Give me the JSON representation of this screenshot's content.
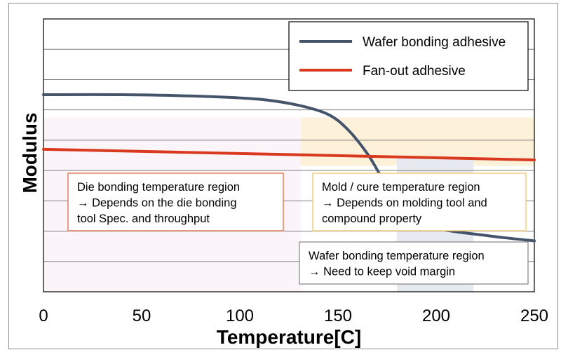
{
  "chart_data": {
    "type": "line",
    "xlabel": "Temperature[C]",
    "ylabel": "Modulus",
    "xlim": [
      0,
      250
    ],
    "ylim": [
      0,
      9
    ],
    "x_ticks": [
      "0",
      "50",
      "100",
      "150",
      "200",
      "250"
    ],
    "grid": true,
    "legend_position": "top-right",
    "series": [
      {
        "name": "Wafer bonding adhesive",
        "color": "#44546a",
        "x": [
          0,
          40,
          80,
          110,
          130,
          145,
          155,
          165,
          172,
          180,
          190,
          200,
          210,
          220,
          235,
          250
        ],
        "y": [
          6.5,
          6.5,
          6.45,
          6.35,
          6.15,
          5.85,
          5.35,
          4.55,
          3.8,
          3.0,
          2.35,
          2.1,
          1.98,
          1.9,
          1.78,
          1.68
        ]
      },
      {
        "name": "Fan-out adhesive",
        "color": "#d93a1f",
        "x": [
          0,
          250
        ],
        "y": [
          4.7,
          4.35
        ]
      }
    ],
    "regions": [
      {
        "x0": 0,
        "x1": 131,
        "y0": 0,
        "y1": 5.75,
        "color": "#fbf4f8"
      },
      {
        "x0": 131,
        "x1": 250,
        "y0": 4.15,
        "y1": 5.75,
        "color": "#fdf1d9"
      },
      {
        "x0": 180,
        "x1": 219,
        "y0": 0,
        "y1": 4.4,
        "color": "#e6e9f0"
      }
    ],
    "annotations": [
      {
        "lines": [
          "Die bonding temperature region",
          "→ Depends on the die bonding",
          "tool Spec. and throughput"
        ],
        "border": "#e06a48"
      },
      {
        "lines": [
          "Mold / cure temperature region",
          "→ Depends on molding tool and",
          "compound property"
        ],
        "border": "#f2c86a"
      },
      {
        "lines": [
          "Wafer bonding temperature region",
          "→ Need to keep void margin"
        ],
        "border": "#8c8c8c"
      }
    ]
  }
}
